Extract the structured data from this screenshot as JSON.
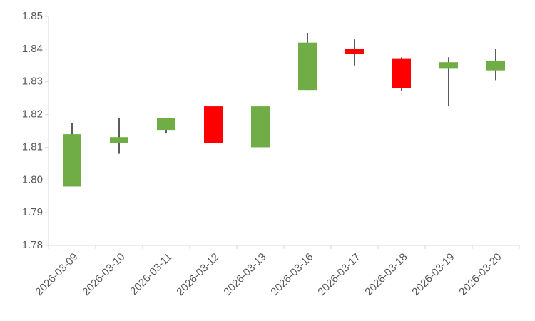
{
  "chart_data": {
    "type": "candlestick",
    "categories": [
      "2026-03-09",
      "2026-03-10",
      "2026-03-11",
      "2026-03-12",
      "2026-03-13",
      "2026-03-16",
      "2026-03-17",
      "2026-03-18",
      "2026-03-19",
      "2026-03-20"
    ],
    "open": [
      1.798,
      1.8114,
      1.8153,
      1.8225,
      1.81,
      1.8275,
      1.84,
      1.837,
      1.834,
      1.8335
    ],
    "high": [
      1.8175,
      1.819,
      1.819,
      1.8225,
      1.8225,
      1.845,
      1.843,
      1.8375,
      1.8375,
      1.84
    ],
    "low": [
      1.798,
      1.808,
      1.8142,
      1.8114,
      1.81,
      1.8275,
      1.835,
      1.8273,
      1.8225,
      1.8305
    ],
    "close": [
      1.814,
      1.8131,
      1.819,
      1.8114,
      1.8225,
      1.842,
      1.8385,
      1.828,
      1.836,
      1.8365
    ],
    "up_color": "#70ad47",
    "down_color": "#ff0000",
    "ylim": [
      1.78,
      1.85
    ],
    "yticks": [
      1.78,
      1.79,
      {
        "value": 1.8,
        "label": "1.80"
      },
      1.81,
      1.82,
      1.83,
      1.84,
      1.85
    ]
  }
}
